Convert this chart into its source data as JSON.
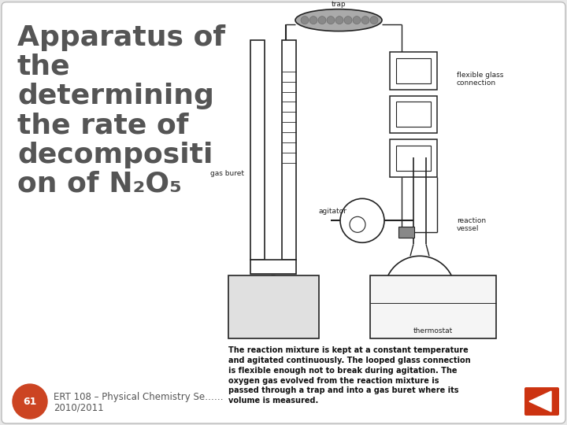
{
  "bg_color": "#e8e8e8",
  "slide_bg": "#ffffff",
  "title_text": "Apparatus of\nthe\ndetermining\nthe rate of\ndecompositi\non of N₂O₅",
  "title_color": "#555555",
  "title_fontsize": 26,
  "footer_number": "61",
  "footer_number_bg": "#cc4422",
  "footer_text": "ERT 108 – Physical Chemistry Se……",
  "footer_year": "2010/2011",
  "footer_fontsize": 8.5,
  "arrow_color": "#cc3311",
  "description_text": "The reaction mixture is kept at a constant temperature\nand agitated continuously. The looped glass connection\nis flexible enough not to break during agitation. The\noxygen gas evolved from the reaction mixture is\npassed through a trap and into a gas buret where its\nvolume is measured.",
  "desc_fontsize": 7.0,
  "lc": "#222222",
  "lw": 1.0
}
